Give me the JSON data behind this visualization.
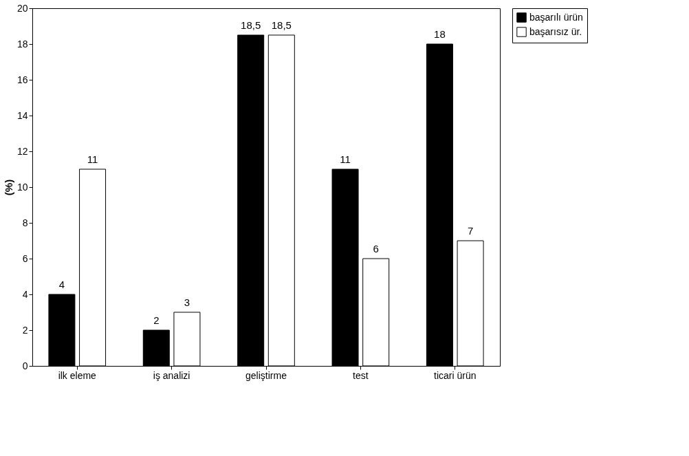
{
  "chart_data": {
    "type": "bar",
    "categories": [
      "ilk eleme",
      "iş analizi",
      "geliştirme",
      "test",
      "ticari ürün"
    ],
    "series": [
      {
        "name": "başarılı ürün",
        "color": "#000000",
        "values": [
          4,
          2,
          18.5,
          11,
          18
        ],
        "value_labels": [
          "4",
          "2",
          "18,5",
          "11",
          "18"
        ]
      },
      {
        "name": "başarısız ür.",
        "color": "#ffffff",
        "values": [
          11,
          3,
          18.5,
          6,
          7
        ],
        "value_labels": [
          "11",
          "3",
          "18,5",
          "6",
          "7"
        ]
      }
    ],
    "ylabel": "(%)",
    "ylim": [
      0,
      20
    ],
    "yticks": [
      0,
      2,
      4,
      6,
      8,
      10,
      12,
      14,
      16,
      18,
      20
    ],
    "grid": false,
    "legend": "right"
  }
}
